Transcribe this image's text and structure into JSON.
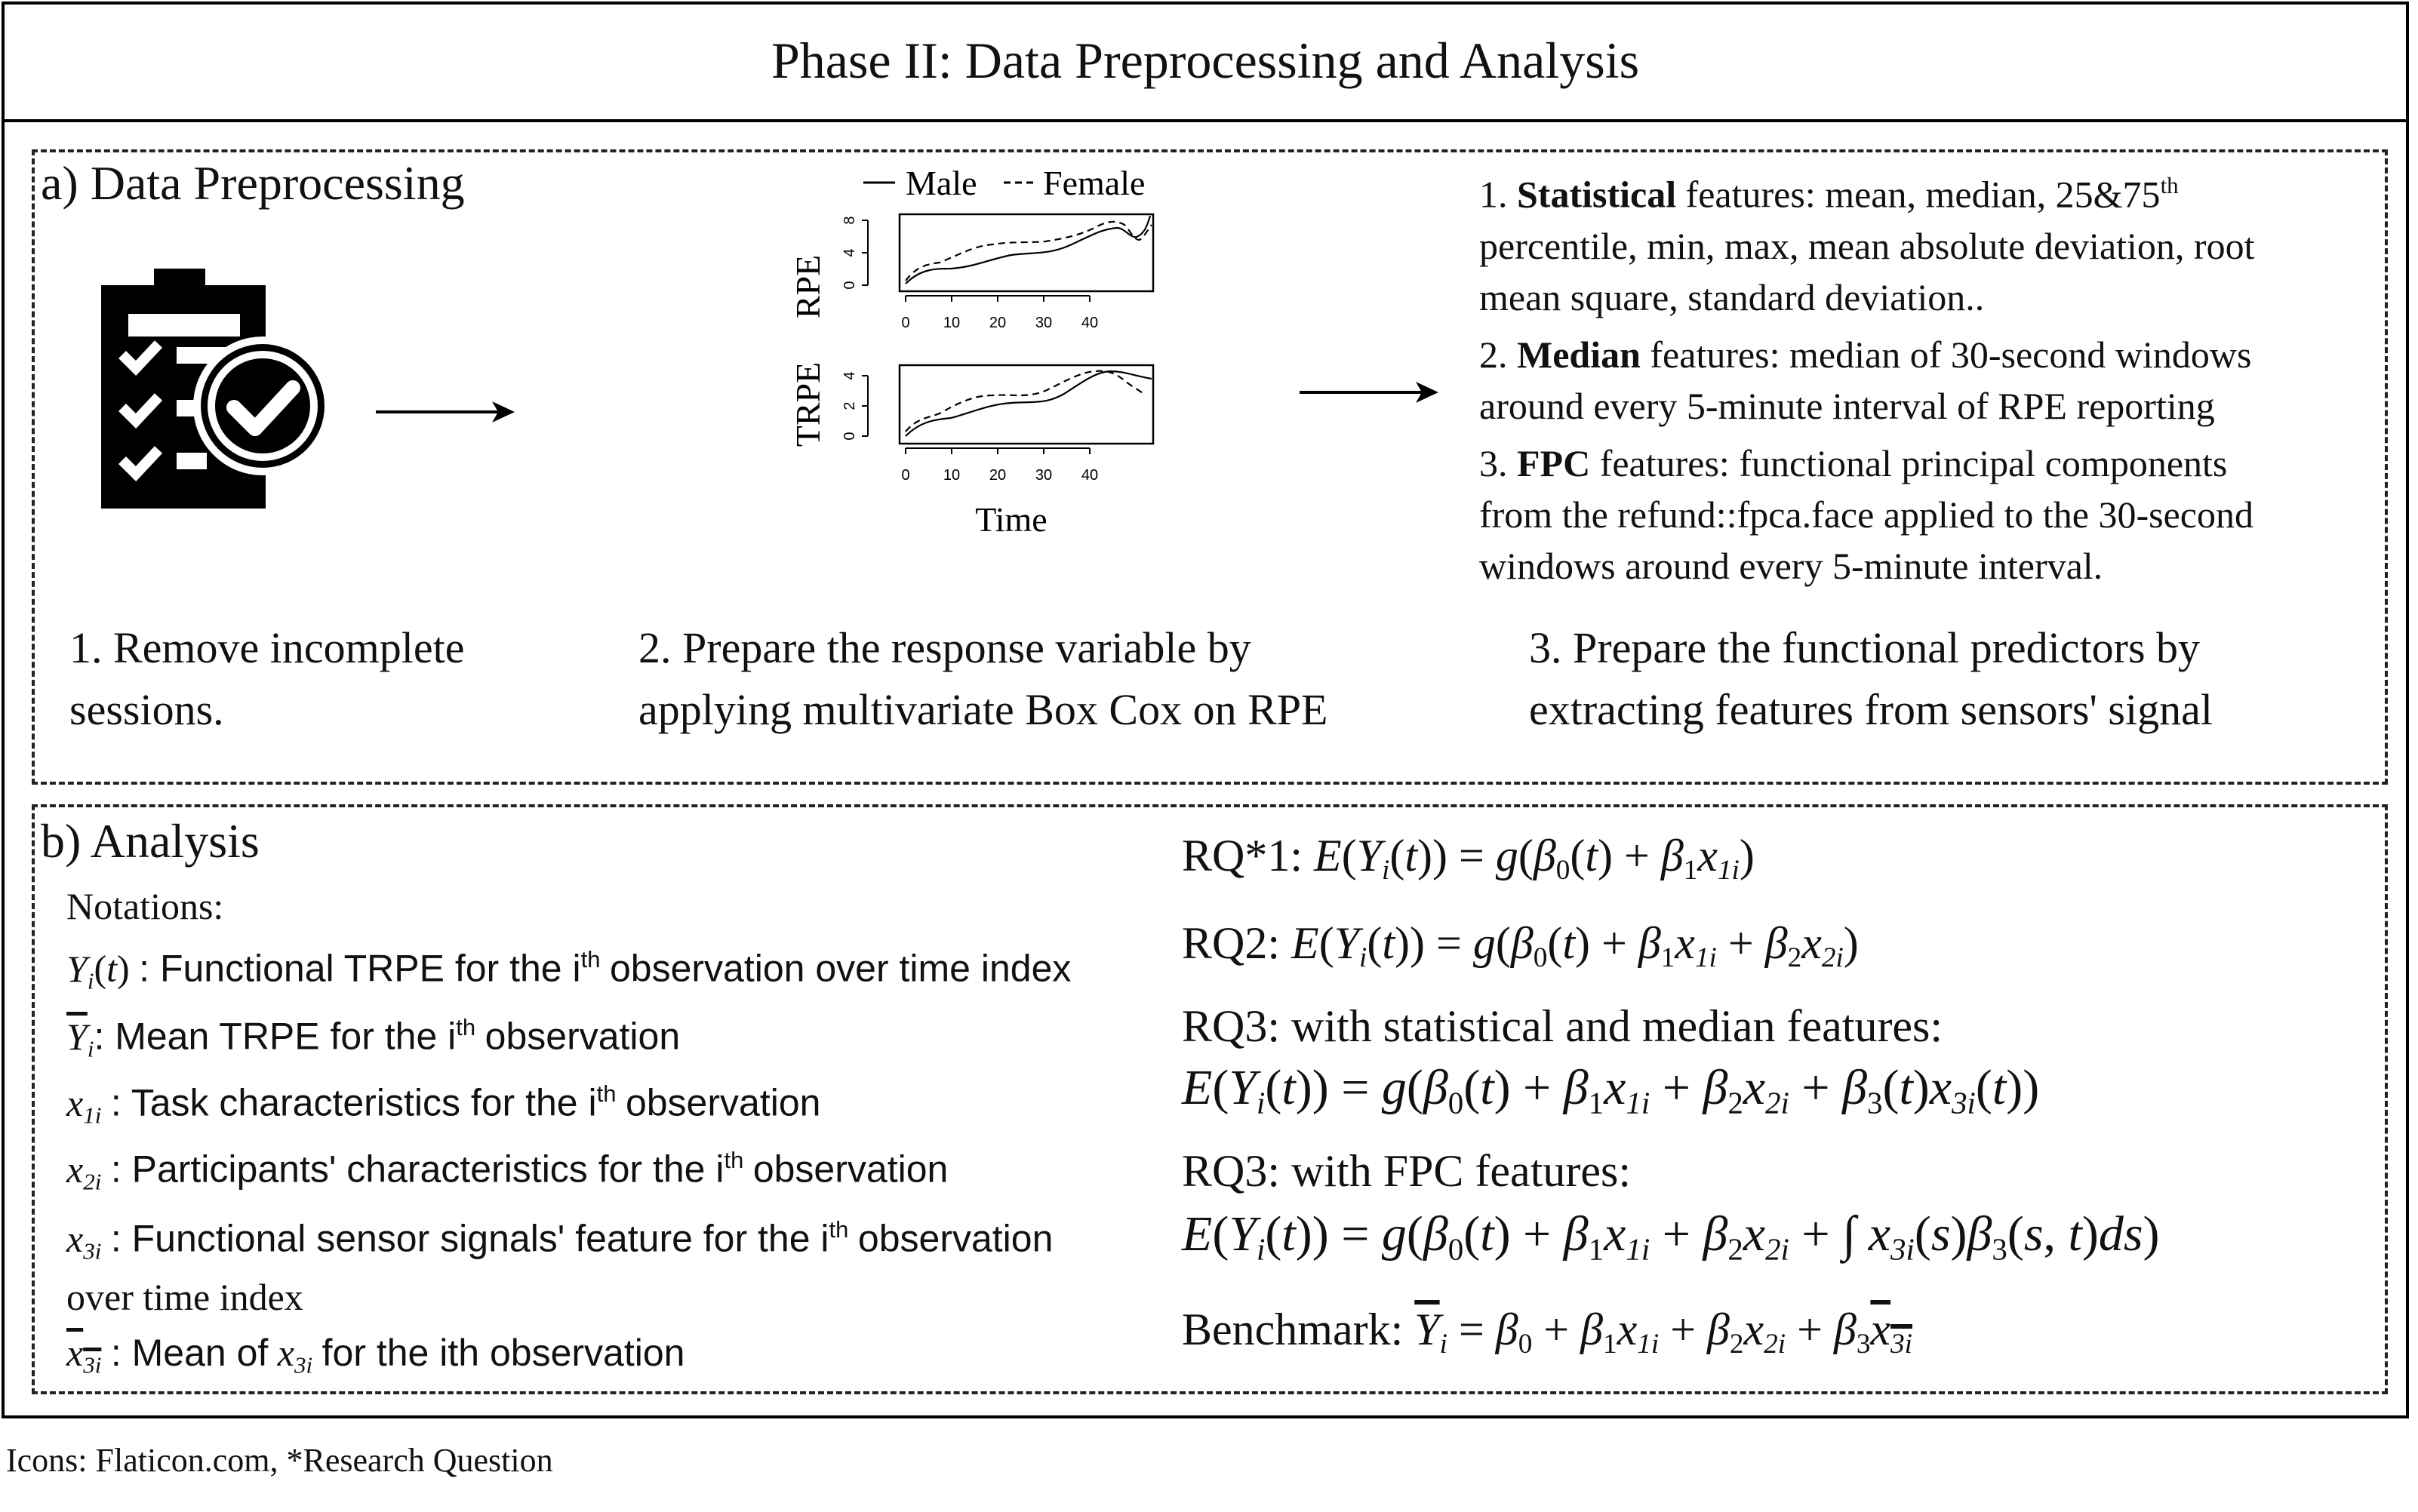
{
  "title": "Phase II: Data Preprocessing and Analysis",
  "preprocessing": {
    "title": "a) Data Preprocessing",
    "icons": [
      "clipboard-checklist-icon",
      "check-circle-icon",
      "arrow-right-icon"
    ],
    "chart": {
      "legend_male": "Male",
      "legend_female": "Female",
      "rpe_ylabel": "RPE",
      "rpe_yticks": [
        "0",
        "4",
        "8"
      ],
      "trpe_ylabel": "TRPE",
      "trpe_yticks": [
        "0",
        "2",
        "4"
      ],
      "xticks": [
        "0",
        "10",
        "20",
        "30",
        "40"
      ],
      "xlabel": "Time"
    },
    "steps": {
      "step1_line1": "1. Remove incomplete",
      "step1_line2": "sessions.",
      "step2_line1": "2. Prepare the response variable by",
      "step2_line2": "applying multivariate Box Cox on RPE",
      "step3_line1": "3. Prepare the functional predictors by",
      "step3_line2": "extracting features from sensors' signal"
    },
    "features": {
      "f1_num": "1.",
      "f1_bold": "Statistical",
      "f1_text": "features: mean, median, 25&75",
      "f1_sup": "th",
      "f1_line2": "percentile, min, max, mean absolute deviation, root",
      "f1_line3": "mean square, standard deviation..",
      "f2_num": "2.",
      "f2_bold": "Median",
      "f2_text": "features: median of 30-second windows",
      "f2_line2": "around every 5-minute interval of RPE reporting",
      "f3_num": "3.",
      "f3_bold": "FPC",
      "f3_text": "features: functional principal components",
      "f3_line2": "from the refund::fpca.face applied to the  30-second",
      "f3_line3": "windows around every 5-minute interval."
    }
  },
  "analysis": {
    "title": "b) Analysis",
    "notations_title": "Notations:",
    "notations": {
      "n1": ": Functional TRPE for the i",
      "n1_end": "observation over time index",
      "n2": ": Mean TRPE for the i",
      "n2_end": "observation",
      "n3": ": Task characteristics for the i",
      "n3_end": "observation",
      "n4": ": Participants' characteristics for the i",
      "n4_end": "observation",
      "n5": ": Functional sensor signals' feature for the i",
      "n5_end": "observation",
      "n5_line2": "over time index",
      "n6_pre": ": Mean of",
      "n6_end": "for the ith observation",
      "th": "th"
    },
    "rq": {
      "rq1_label": "RQ*1:",
      "rq2_label": "RQ2:",
      "rq3a_label": "RQ3: with statistical and median features:",
      "rq3b_label": "RQ3: with FPC features:",
      "benchmark_label": "Benchmark:"
    }
  },
  "footnote": "Icons: Flaticon.com, *Research Question"
}
